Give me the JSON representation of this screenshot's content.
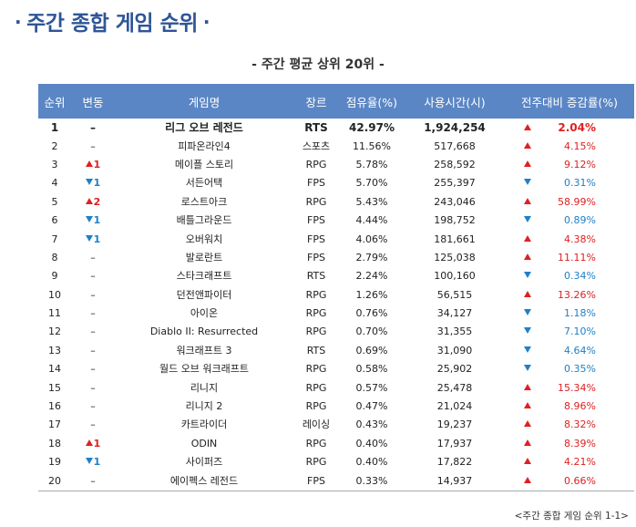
{
  "title": "주간 종합 게임 순위",
  "title_dot": "·",
  "subtitle": "- 주간 평균 상위 20위 -",
  "headers": [
    "순위",
    "변동",
    "게임명",
    "장르",
    "점유율(%)",
    "사용시간(시)",
    "전주대비 증감률(%)"
  ],
  "rows": [
    {
      "rank": "1",
      "change_dir": "none",
      "change": "–",
      "name": "리그 오브 레전드",
      "genre": "RTS",
      "share": "42.97%",
      "hours": "1,924,254",
      "trend": "up",
      "rate": "2.04%"
    },
    {
      "rank": "2",
      "change_dir": "none",
      "change": "–",
      "name": "피파온라인4",
      "genre": "스포츠",
      "share": "11.56%",
      "hours": "517,668",
      "trend": "up",
      "rate": "4.15%"
    },
    {
      "rank": "3",
      "change_dir": "up",
      "change": "1",
      "name": "메이플 스토리",
      "genre": "RPG",
      "share": "5.78%",
      "hours": "258,592",
      "trend": "up",
      "rate": "9.12%"
    },
    {
      "rank": "4",
      "change_dir": "down",
      "change": "1",
      "name": "서든어택",
      "genre": "FPS",
      "share": "5.70%",
      "hours": "255,397",
      "trend": "down",
      "rate": "0.31%"
    },
    {
      "rank": "5",
      "change_dir": "up",
      "change": "2",
      "name": "로스트아크",
      "genre": "RPG",
      "share": "5.43%",
      "hours": "243,046",
      "trend": "up",
      "rate": "58.99%"
    },
    {
      "rank": "6",
      "change_dir": "down",
      "change": "1",
      "name": "배틀그라운드",
      "genre": "FPS",
      "share": "4.44%",
      "hours": "198,752",
      "trend": "down",
      "rate": "0.89%"
    },
    {
      "rank": "7",
      "change_dir": "down",
      "change": "1",
      "name": "오버워치",
      "genre": "FPS",
      "share": "4.06%",
      "hours": "181,661",
      "trend": "up",
      "rate": "4.38%"
    },
    {
      "rank": "8",
      "change_dir": "none",
      "change": "–",
      "name": "발로란트",
      "genre": "FPS",
      "share": "2.79%",
      "hours": "125,038",
      "trend": "up",
      "rate": "11.11%"
    },
    {
      "rank": "9",
      "change_dir": "none",
      "change": "–",
      "name": "스타크래프트",
      "genre": "RTS",
      "share": "2.24%",
      "hours": "100,160",
      "trend": "down",
      "rate": "0.34%"
    },
    {
      "rank": "10",
      "change_dir": "none",
      "change": "–",
      "name": "던전앤파이터",
      "genre": "RPG",
      "share": "1.26%",
      "hours": "56,515",
      "trend": "up",
      "rate": "13.26%"
    },
    {
      "rank": "11",
      "change_dir": "none",
      "change": "–",
      "name": "아이온",
      "genre": "RPG",
      "share": "0.76%",
      "hours": "34,127",
      "trend": "down",
      "rate": "1.18%"
    },
    {
      "rank": "12",
      "change_dir": "none",
      "change": "–",
      "name": "Diablo II: Resurrected",
      "genre": "RPG",
      "share": "0.70%",
      "hours": "31,355",
      "trend": "down",
      "rate": "7.10%"
    },
    {
      "rank": "13",
      "change_dir": "none",
      "change": "–",
      "name": "워크래프트 3",
      "genre": "RTS",
      "share": "0.69%",
      "hours": "31,090",
      "trend": "down",
      "rate": "4.64%"
    },
    {
      "rank": "14",
      "change_dir": "none",
      "change": "–",
      "name": "월드 오브 워크래프트",
      "genre": "RPG",
      "share": "0.58%",
      "hours": "25,902",
      "trend": "down",
      "rate": "0.35%"
    },
    {
      "rank": "15",
      "change_dir": "none",
      "change": "–",
      "name": "리니지",
      "genre": "RPG",
      "share": "0.57%",
      "hours": "25,478",
      "trend": "up",
      "rate": "15.34%"
    },
    {
      "rank": "16",
      "change_dir": "none",
      "change": "–",
      "name": "리니지 2",
      "genre": "RPG",
      "share": "0.47%",
      "hours": "21,024",
      "trend": "up",
      "rate": "8.96%"
    },
    {
      "rank": "17",
      "change_dir": "none",
      "change": "–",
      "name": "카트라이더",
      "genre": "레이싱",
      "share": "0.43%",
      "hours": "19,237",
      "trend": "up",
      "rate": "8.32%"
    },
    {
      "rank": "18",
      "change_dir": "up",
      "change": "1",
      "name": "ODIN",
      "genre": "RPG",
      "share": "0.40%",
      "hours": "17,937",
      "trend": "up",
      "rate": "8.39%"
    },
    {
      "rank": "19",
      "change_dir": "down",
      "change": "1",
      "name": "사이퍼즈",
      "genre": "RPG",
      "share": "0.40%",
      "hours": "17,822",
      "trend": "up",
      "rate": "4.21%"
    },
    {
      "rank": "20",
      "change_dir": "none",
      "change": "–",
      "name": "에이펙스 레전드",
      "genre": "FPS",
      "share": "0.33%",
      "hours": "14,937",
      "trend": "up",
      "rate": "0.66%"
    }
  ],
  "caption": "<주간 종합 게임 순위 1-1>",
  "colors": {
    "title": "#2f5597",
    "header_bg": "#5b86c5",
    "up": "#e02020",
    "down": "#1e80c8"
  }
}
